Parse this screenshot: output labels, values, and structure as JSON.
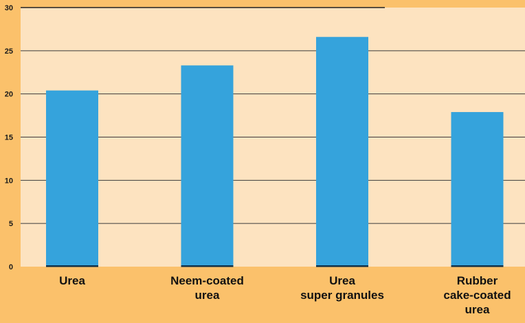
{
  "chart_data": {
    "type": "bar",
    "categories": [
      [
        "Urea"
      ],
      [
        "Neem-coated",
        "urea"
      ],
      [
        "Urea",
        "super granules"
      ],
      [
        "Rubber",
        "cake-coated",
        "urea"
      ]
    ],
    "values": [
      20.4,
      23.3,
      26.6,
      17.9
    ],
    "ylim": [
      0,
      30
    ],
    "yticks": [
      0,
      5,
      10,
      15,
      20,
      25,
      30
    ],
    "grid": true,
    "colors": {
      "bar": "#35a3dc",
      "bar_base": "#10314a",
      "plot_bg": "#fde3c0",
      "page_bg": "#fbc16b",
      "grid": "#3a3a3a",
      "top_line": "#222222"
    }
  }
}
